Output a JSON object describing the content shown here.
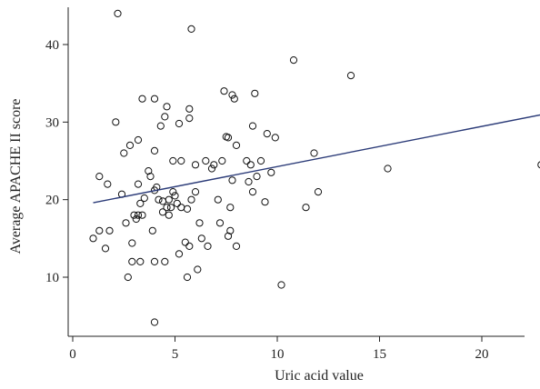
{
  "chart_data": {
    "type": "scatter",
    "title": "",
    "xlabel": "Uric acid value",
    "ylabel": "Average APACHE II score",
    "xlim": [
      0,
      23
    ],
    "ylim": [
      3.5,
      45
    ],
    "xticks": [
      0,
      5,
      10,
      15,
      20
    ],
    "yticks": [
      10,
      20,
      30,
      40
    ],
    "grid": false,
    "marker": "open-circle",
    "colors": {
      "points": "#111111",
      "fit_line": "#2b3b78"
    },
    "points": [
      [
        1.0,
        15
      ],
      [
        1.3,
        16
      ],
      [
        1.3,
        23
      ],
      [
        1.6,
        13.7
      ],
      [
        1.7,
        22
      ],
      [
        1.8,
        16
      ],
      [
        2.2,
        44
      ],
      [
        2.1,
        30
      ],
      [
        2.4,
        20.7
      ],
      [
        2.6,
        17
      ],
      [
        2.5,
        26
      ],
      [
        2.7,
        10
      ],
      [
        2.8,
        27
      ],
      [
        2.9,
        12
      ],
      [
        2.9,
        14.4
      ],
      [
        3.0,
        18
      ],
      [
        3.1,
        17.5
      ],
      [
        3.2,
        18
      ],
      [
        3.3,
        19.5
      ],
      [
        3.2,
        22
      ],
      [
        3.2,
        27.7
      ],
      [
        3.3,
        12
      ],
      [
        3.4,
        18
      ],
      [
        3.5,
        20.2
      ],
      [
        3.4,
        33
      ],
      [
        3.7,
        23.7
      ],
      [
        3.8,
        23
      ],
      [
        3.9,
        16
      ],
      [
        4.0,
        12
      ],
      [
        4.0,
        21.2
      ],
      [
        4.0,
        26.3
      ],
      [
        4.0,
        33
      ],
      [
        4.1,
        21.6
      ],
      [
        4.0,
        4.2
      ],
      [
        4.2,
        20
      ],
      [
        4.3,
        29.5
      ],
      [
        4.4,
        19.8
      ],
      [
        4.4,
        18.4
      ],
      [
        4.5,
        12
      ],
      [
        4.5,
        30.7
      ],
      [
        4.6,
        19
      ],
      [
        4.6,
        32
      ],
      [
        4.7,
        18
      ],
      [
        4.7,
        20
      ],
      [
        4.8,
        19
      ],
      [
        4.9,
        21
      ],
      [
        4.9,
        25
      ],
      [
        5.0,
        20.5
      ],
      [
        5.1,
        19.5
      ],
      [
        5.2,
        13
      ],
      [
        5.2,
        29.8
      ],
      [
        5.3,
        19
      ],
      [
        5.3,
        25
      ],
      [
        5.5,
        14.5
      ],
      [
        5.6,
        10
      ],
      [
        5.6,
        18.8
      ],
      [
        5.7,
        14
      ],
      [
        5.7,
        30.5
      ],
      [
        5.7,
        31.7
      ],
      [
        5.8,
        20
      ],
      [
        5.8,
        42
      ],
      [
        6.0,
        21
      ],
      [
        6.0,
        24.5
      ],
      [
        6.1,
        11
      ],
      [
        6.2,
        17
      ],
      [
        6.3,
        15
      ],
      [
        6.5,
        25
      ],
      [
        6.6,
        14
      ],
      [
        6.8,
        24
      ],
      [
        6.9,
        24.5
      ],
      [
        7.1,
        20
      ],
      [
        7.2,
        17
      ],
      [
        7.3,
        25
      ],
      [
        7.4,
        34
      ],
      [
        7.5,
        28.1
      ],
      [
        7.6,
        28
      ],
      [
        7.6,
        15.3
      ],
      [
        7.7,
        19
      ],
      [
        7.7,
        16
      ],
      [
        7.8,
        22.5
      ],
      [
        7.8,
        33.5
      ],
      [
        7.9,
        33
      ],
      [
        8.0,
        27
      ],
      [
        8.0,
        14
      ],
      [
        8.5,
        25
      ],
      [
        8.6,
        22.3
      ],
      [
        8.7,
        24.5
      ],
      [
        8.8,
        21
      ],
      [
        8.8,
        29.5
      ],
      [
        8.9,
        33.7
      ],
      [
        9.0,
        23
      ],
      [
        9.2,
        25
      ],
      [
        9.4,
        19.7
      ],
      [
        9.5,
        28.5
      ],
      [
        9.7,
        23.5
      ],
      [
        9.9,
        28
      ],
      [
        10.2,
        9
      ],
      [
        10.8,
        38
      ],
      [
        11.4,
        19
      ],
      [
        11.8,
        26
      ],
      [
        12.0,
        21
      ],
      [
        13.6,
        36
      ],
      [
        15.4,
        24
      ],
      [
        22.9,
        24.5
      ]
    ],
    "fit_line": {
      "x": [
        1.0,
        23.0
      ],
      "y": [
        19.6,
        31.0
      ]
    }
  }
}
